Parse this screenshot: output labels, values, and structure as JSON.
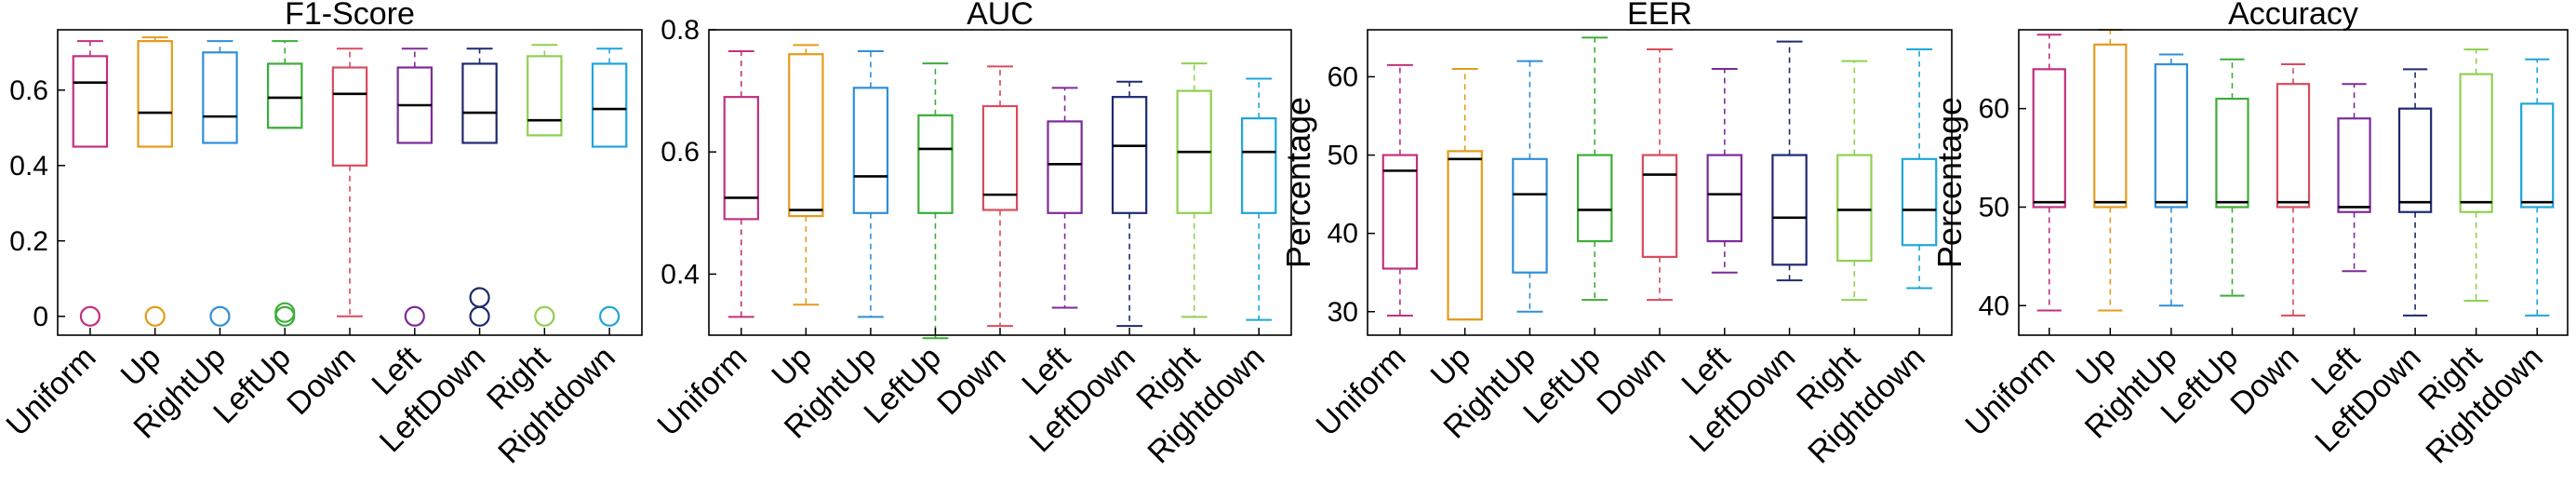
{
  "categories": [
    "Uniform",
    "Up",
    "RightUp",
    "LeftUp",
    "Down",
    "Left",
    "LeftDown",
    "Right",
    "Rightdown"
  ],
  "colors": [
    "#c2317f",
    "#e39b1b",
    "#2f8fd8",
    "#3dad39",
    "#d94b5e",
    "#7d2a99",
    "#1e2a6e",
    "#8fd14f",
    "#1da6d9"
  ],
  "chart_data": [
    {
      "type": "boxplot",
      "title": "F1-Score",
      "ylabel": "",
      "ylim": [
        -0.05,
        0.76
      ],
      "yticks": [
        0,
        0.2,
        0.4,
        0.6
      ],
      "tick_labels": [
        "0",
        "0.2",
        "0.4",
        "0.6"
      ],
      "boxes": [
        {
          "whisker_low": 0.45,
          "q1": 0.45,
          "median": 0.62,
          "q3": 0.69,
          "whisker_high": 0.73,
          "outliers": [
            0.0
          ]
        },
        {
          "whisker_low": 0.45,
          "q1": 0.45,
          "median": 0.54,
          "q3": 0.73,
          "whisker_high": 0.74,
          "outliers": [
            0.0
          ]
        },
        {
          "whisker_low": 0.46,
          "q1": 0.46,
          "median": 0.53,
          "q3": 0.7,
          "whisker_high": 0.73,
          "outliers": [
            0.0
          ]
        },
        {
          "whisker_low": 0.5,
          "q1": 0.5,
          "median": 0.58,
          "q3": 0.67,
          "whisker_high": 0.73,
          "outliers": [
            0.0,
            0.01
          ]
        },
        {
          "whisker_low": 0.0,
          "q1": 0.4,
          "median": 0.59,
          "q3": 0.66,
          "whisker_high": 0.71,
          "outliers": []
        },
        {
          "whisker_low": 0.46,
          "q1": 0.46,
          "median": 0.56,
          "q3": 0.66,
          "whisker_high": 0.71,
          "outliers": [
            0.0
          ]
        },
        {
          "whisker_low": 0.46,
          "q1": 0.46,
          "median": 0.54,
          "q3": 0.67,
          "whisker_high": 0.71,
          "outliers": [
            0.0,
            0.05
          ]
        },
        {
          "whisker_low": 0.48,
          "q1": 0.48,
          "median": 0.52,
          "q3": 0.69,
          "whisker_high": 0.72,
          "outliers": [
            0.0
          ]
        },
        {
          "whisker_low": 0.45,
          "q1": 0.45,
          "median": 0.55,
          "q3": 0.67,
          "whisker_high": 0.71,
          "outliers": [
            0.0
          ]
        }
      ]
    },
    {
      "type": "boxplot",
      "title": "AUC",
      "ylabel": "",
      "ylim": [
        0.3,
        0.8
      ],
      "yticks": [
        0.4,
        0.6,
        0.8
      ],
      "tick_labels": [
        "0.4",
        "0.6",
        "0.8"
      ],
      "boxes": [
        {
          "whisker_low": 0.33,
          "q1": 0.49,
          "median": 0.525,
          "q3": 0.69,
          "whisker_high": 0.765,
          "outliers": []
        },
        {
          "whisker_low": 0.35,
          "q1": 0.495,
          "median": 0.505,
          "q3": 0.76,
          "whisker_high": 0.775,
          "outliers": []
        },
        {
          "whisker_low": 0.33,
          "q1": 0.5,
          "median": 0.56,
          "q3": 0.705,
          "whisker_high": 0.765,
          "outliers": []
        },
        {
          "whisker_low": 0.295,
          "q1": 0.5,
          "median": 0.605,
          "q3": 0.66,
          "whisker_high": 0.745,
          "outliers": []
        },
        {
          "whisker_low": 0.315,
          "q1": 0.505,
          "median": 0.53,
          "q3": 0.675,
          "whisker_high": 0.74,
          "outliers": []
        },
        {
          "whisker_low": 0.345,
          "q1": 0.5,
          "median": 0.58,
          "q3": 0.65,
          "whisker_high": 0.705,
          "outliers": []
        },
        {
          "whisker_low": 0.315,
          "q1": 0.5,
          "median": 0.61,
          "q3": 0.69,
          "whisker_high": 0.715,
          "outliers": []
        },
        {
          "whisker_low": 0.33,
          "q1": 0.5,
          "median": 0.6,
          "q3": 0.7,
          "whisker_high": 0.745,
          "outliers": []
        },
        {
          "whisker_low": 0.325,
          "q1": 0.5,
          "median": 0.6,
          "q3": 0.655,
          "whisker_high": 0.72,
          "outliers": []
        }
      ]
    },
    {
      "type": "boxplot",
      "title": "EER",
      "ylabel": "Percentage",
      "ylim": [
        27,
        66
      ],
      "yticks": [
        30,
        40,
        50,
        60
      ],
      "tick_labels": [
        "30",
        "40",
        "50",
        "60"
      ],
      "boxes": [
        {
          "whisker_low": 29.5,
          "q1": 35.5,
          "median": 48.0,
          "q3": 50.0,
          "whisker_high": 61.5,
          "outliers": []
        },
        {
          "whisker_low": 29.0,
          "q1": 29.0,
          "median": 49.5,
          "q3": 50.5,
          "whisker_high": 61.0,
          "outliers": []
        },
        {
          "whisker_low": 30.0,
          "q1": 35.0,
          "median": 45.0,
          "q3": 49.5,
          "whisker_high": 62.0,
          "outliers": []
        },
        {
          "whisker_low": 31.5,
          "q1": 39.0,
          "median": 43.0,
          "q3": 50.0,
          "whisker_high": 65.0,
          "outliers": []
        },
        {
          "whisker_low": 31.5,
          "q1": 37.0,
          "median": 47.5,
          "q3": 50.0,
          "whisker_high": 63.5,
          "outliers": []
        },
        {
          "whisker_low": 35.0,
          "q1": 39.0,
          "median": 45.0,
          "q3": 50.0,
          "whisker_high": 61.0,
          "outliers": []
        },
        {
          "whisker_low": 34.0,
          "q1": 36.0,
          "median": 42.0,
          "q3": 50.0,
          "whisker_high": 64.5,
          "outliers": []
        },
        {
          "whisker_low": 31.5,
          "q1": 36.5,
          "median": 43.0,
          "q3": 50.0,
          "whisker_high": 62.0,
          "outliers": []
        },
        {
          "whisker_low": 33.0,
          "q1": 38.5,
          "median": 43.0,
          "q3": 49.5,
          "whisker_high": 63.5,
          "outliers": []
        }
      ]
    },
    {
      "type": "boxplot",
      "title": "Accuracy",
      "ylabel": "Percentage",
      "ylim": [
        37,
        68
      ],
      "yticks": [
        40,
        50,
        60
      ],
      "tick_labels": [
        "40",
        "50",
        "60"
      ],
      "boxes": [
        {
          "whisker_low": 39.5,
          "q1": 50.0,
          "median": 50.5,
          "q3": 64.0,
          "whisker_high": 67.5,
          "outliers": []
        },
        {
          "whisker_low": 39.5,
          "q1": 50.0,
          "median": 50.5,
          "q3": 66.5,
          "whisker_high": 68.0,
          "outliers": []
        },
        {
          "whisker_low": 40.0,
          "q1": 50.0,
          "median": 50.5,
          "q3": 64.5,
          "whisker_high": 65.5,
          "outliers": []
        },
        {
          "whisker_low": 41.0,
          "q1": 50.0,
          "median": 50.5,
          "q3": 61.0,
          "whisker_high": 65.0,
          "outliers": []
        },
        {
          "whisker_low": 39.0,
          "q1": 50.0,
          "median": 50.5,
          "q3": 62.5,
          "whisker_high": 64.5,
          "outliers": []
        },
        {
          "whisker_low": 43.5,
          "q1": 49.5,
          "median": 50.0,
          "q3": 59.0,
          "whisker_high": 62.5,
          "outliers": []
        },
        {
          "whisker_low": 39.0,
          "q1": 49.5,
          "median": 50.5,
          "q3": 60.0,
          "whisker_high": 64.0,
          "outliers": []
        },
        {
          "whisker_low": 40.5,
          "q1": 49.5,
          "median": 50.5,
          "q3": 63.5,
          "whisker_high": 66.0,
          "outliers": []
        },
        {
          "whisker_low": 39.0,
          "q1": 50.0,
          "median": 50.5,
          "q3": 60.5,
          "whisker_high": 65.0,
          "outliers": []
        }
      ]
    }
  ]
}
